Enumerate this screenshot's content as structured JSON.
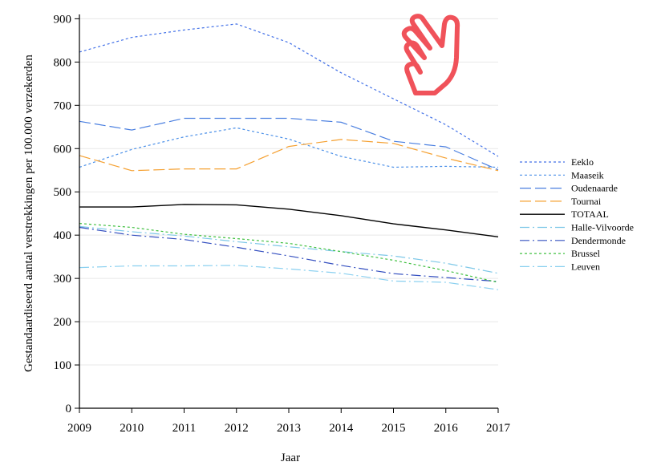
{
  "chart_data": {
    "type": "line",
    "title": "",
    "xlabel": "Jaar",
    "ylabel": "Gestandaardiseerd aantal verstrekkingen per 100.000 verzekerden",
    "x": [
      2009,
      2010,
      2011,
      2012,
      2013,
      2014,
      2015,
      2016,
      2017
    ],
    "x_tick_labels": [
      "2009",
      "2010",
      "2011",
      "2012",
      "2013",
      "2014",
      "2015",
      "2016",
      "2017"
    ],
    "ylim": [
      0,
      910
    ],
    "y_ticks": [
      0,
      100,
      200,
      300,
      400,
      500,
      600,
      700,
      800,
      900
    ],
    "y_tick_labels": [
      "0",
      "100",
      "200",
      "300",
      "400",
      "500",
      "600",
      "700",
      "800",
      "900"
    ],
    "grid": "horizontal",
    "legend_position": "right",
    "series": [
      {
        "name": "Eeklo",
        "color": "#4472e8",
        "dash": "short-dash",
        "values": [
          823,
          857,
          874,
          888,
          845,
          775,
          715,
          655,
          582
        ]
      },
      {
        "name": "Maaseik",
        "color": "#4a8fe8",
        "dash": "short-dash",
        "values": [
          557,
          598,
          627,
          648,
          622,
          582,
          557,
          559,
          557
        ]
      },
      {
        "name": "Oudenaarde",
        "color": "#4a7fe0",
        "dash": "long-dash",
        "values": [
          663,
          643,
          670,
          670,
          670,
          661,
          617,
          604,
          551
        ]
      },
      {
        "name": "Tournai",
        "color": "#f5a030",
        "dash": "long-dash",
        "values": [
          584,
          549,
          553,
          553,
          605,
          621,
          612,
          578,
          549
        ]
      },
      {
        "name": "TOTAAL",
        "color": "#000000",
        "dash": "solid",
        "values": [
          465,
          465,
          471,
          470,
          460,
          445,
          426,
          412,
          396
        ]
      },
      {
        "name": "Halle-Vilvoorde",
        "color": "#7ec8e8",
        "dash": "dash-dot",
        "values": [
          420,
          408,
          398,
          385,
          373,
          362,
          352,
          335,
          312
        ]
      },
      {
        "name": "Dendermonde",
        "color": "#3550c0",
        "dash": "dash-dot",
        "values": [
          418,
          400,
          390,
          372,
          352,
          330,
          311,
          302,
          293
        ]
      },
      {
        "name": "Brussel",
        "color": "#40c040",
        "dash": "short-dash",
        "values": [
          427,
          418,
          402,
          392,
          381,
          362,
          342,
          318,
          291
        ]
      },
      {
        "name": "Leuven",
        "color": "#8ad0f0",
        "dash": "dash-dot",
        "values": [
          325,
          329,
          329,
          330,
          322,
          312,
          294,
          291,
          274
        ]
      }
    ]
  },
  "overlay": {
    "cursor_icon": "pointing-hand-cursor",
    "cursor_color": "#f0525a"
  }
}
